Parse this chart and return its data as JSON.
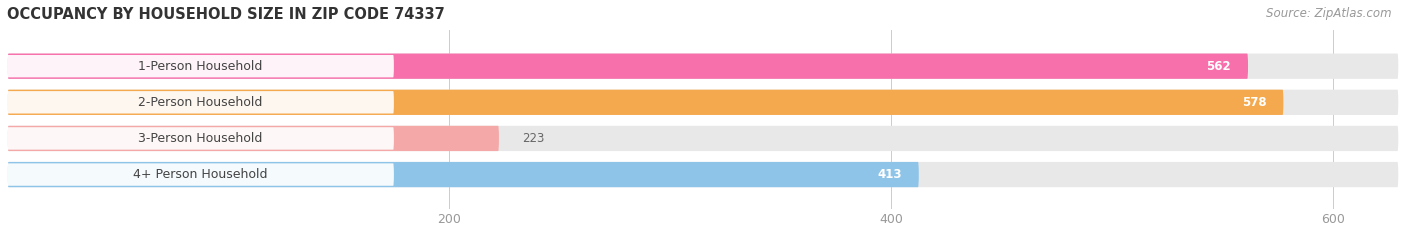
{
  "title": "OCCUPANCY BY HOUSEHOLD SIZE IN ZIP CODE 74337",
  "source": "Source: ZipAtlas.com",
  "categories": [
    "1-Person Household",
    "2-Person Household",
    "3-Person Household",
    "4+ Person Household"
  ],
  "values": [
    562,
    578,
    223,
    413
  ],
  "bar_colors": [
    "#F76FAB",
    "#F5A94E",
    "#F4A8A8",
    "#8EC4E8"
  ],
  "bar_bg_color": "#E8E8E8",
  "xlim": [
    0,
    630
  ],
  "xticks": [
    200,
    400,
    600
  ],
  "title_fontsize": 10.5,
  "label_fontsize": 9,
  "value_fontsize": 8.5,
  "source_fontsize": 8.5,
  "background_color": "#FFFFFF",
  "label_pill_color": "#FFFFFF"
}
